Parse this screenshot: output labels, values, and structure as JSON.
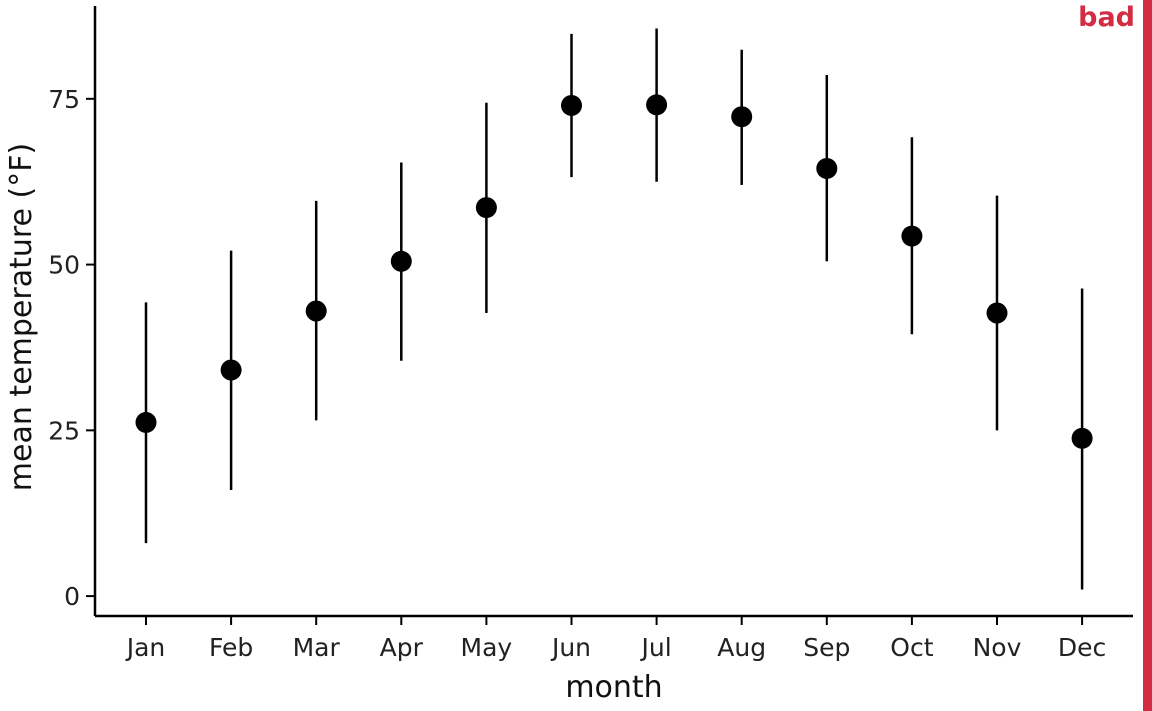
{
  "badge": {
    "label": "bad",
    "color": "#d22d42"
  },
  "chart_data": {
    "type": "scatter",
    "title": "",
    "xlabel": "month",
    "ylabel": "mean temperature (°F)",
    "categories": [
      "Jan",
      "Feb",
      "Mar",
      "Apr",
      "May",
      "Jun",
      "Jul",
      "Aug",
      "Sep",
      "Oct",
      "Nov",
      "Dec"
    ],
    "series": [
      {
        "values": [
          26.2,
          34.1,
          43.0,
          50.5,
          58.6,
          74.0,
          74.1,
          72.3,
          64.5,
          54.3,
          42.7,
          23.8
        ],
        "lower": [
          8.0,
          16.0,
          26.5,
          35.5,
          42.7,
          63.2,
          62.5,
          62.0,
          50.5,
          39.5,
          25.0,
          1.0
        ],
        "upper": [
          44.3,
          52.1,
          59.6,
          65.4,
          74.4,
          84.8,
          85.6,
          82.4,
          78.6,
          69.2,
          60.4,
          46.4
        ]
      }
    ],
    "yticks": [
      0,
      25,
      50,
      75
    ],
    "ylim": [
      -3,
      89
    ],
    "grid": false,
    "legend": "none",
    "colors": {
      "points": "#000000",
      "axes": "#000000"
    }
  }
}
